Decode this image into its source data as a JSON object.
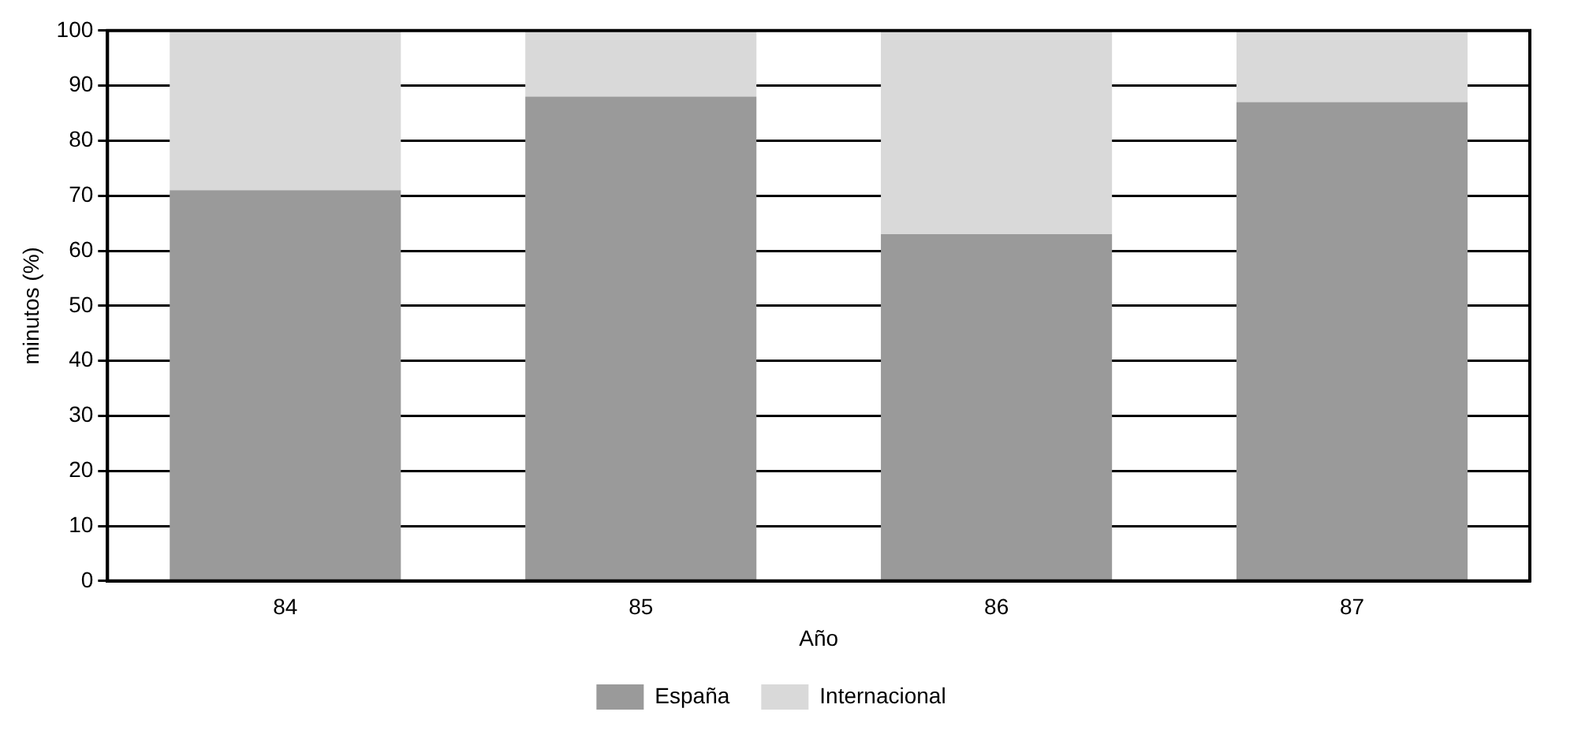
{
  "chart_data": {
    "type": "bar",
    "stacked": true,
    "xlabel": "Año",
    "ylabel": "minutos (%)",
    "categories": [
      "84",
      "85",
      "86",
      "87"
    ],
    "series": [
      {
        "name": "España",
        "color": "#9a9a9a",
        "values": [
          71,
          88,
          63,
          87
        ]
      },
      {
        "name": "Internacional",
        "color": "#d9d9d9",
        "values": [
          29,
          12,
          37,
          13
        ]
      }
    ],
    "ylim": [
      0,
      100
    ],
    "yticks": [
      0,
      10,
      20,
      30,
      40,
      50,
      60,
      70,
      80,
      90,
      100
    ],
    "grid": "y",
    "legend": "bottom"
  }
}
